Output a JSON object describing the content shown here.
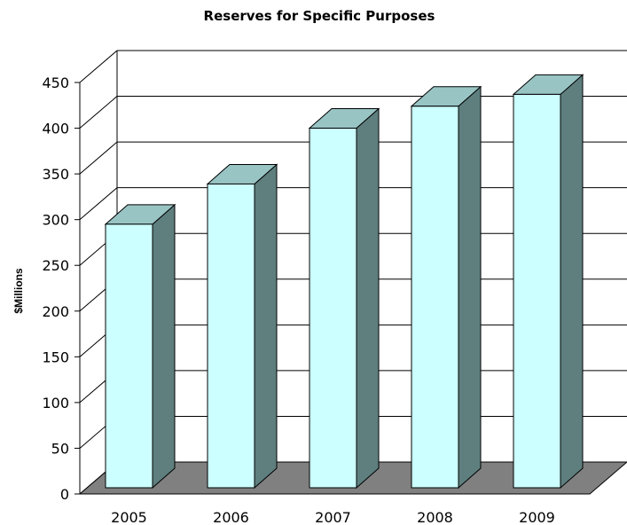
{
  "chart_data": {
    "type": "bar",
    "title": "Reserves for Specific Purposes",
    "xlabel": "",
    "ylabel": "$Millions",
    "categories": [
      "2005",
      "2006",
      "2007",
      "2008",
      "2009"
    ],
    "values": [
      295,
      339,
      400,
      424,
      437
    ],
    "ylim": [
      0,
      450
    ],
    "yticks": [
      0,
      50,
      100,
      150,
      200,
      250,
      300,
      350,
      400,
      450
    ],
    "grid": true,
    "legend": "none",
    "style": "3d",
    "colors": {
      "bar_front": "#ccffff",
      "bar_top": "#99c4c4",
      "bar_side": "#5f7f7f",
      "floor": "#808080",
      "outline": "#000000",
      "grid": "#000000"
    }
  }
}
